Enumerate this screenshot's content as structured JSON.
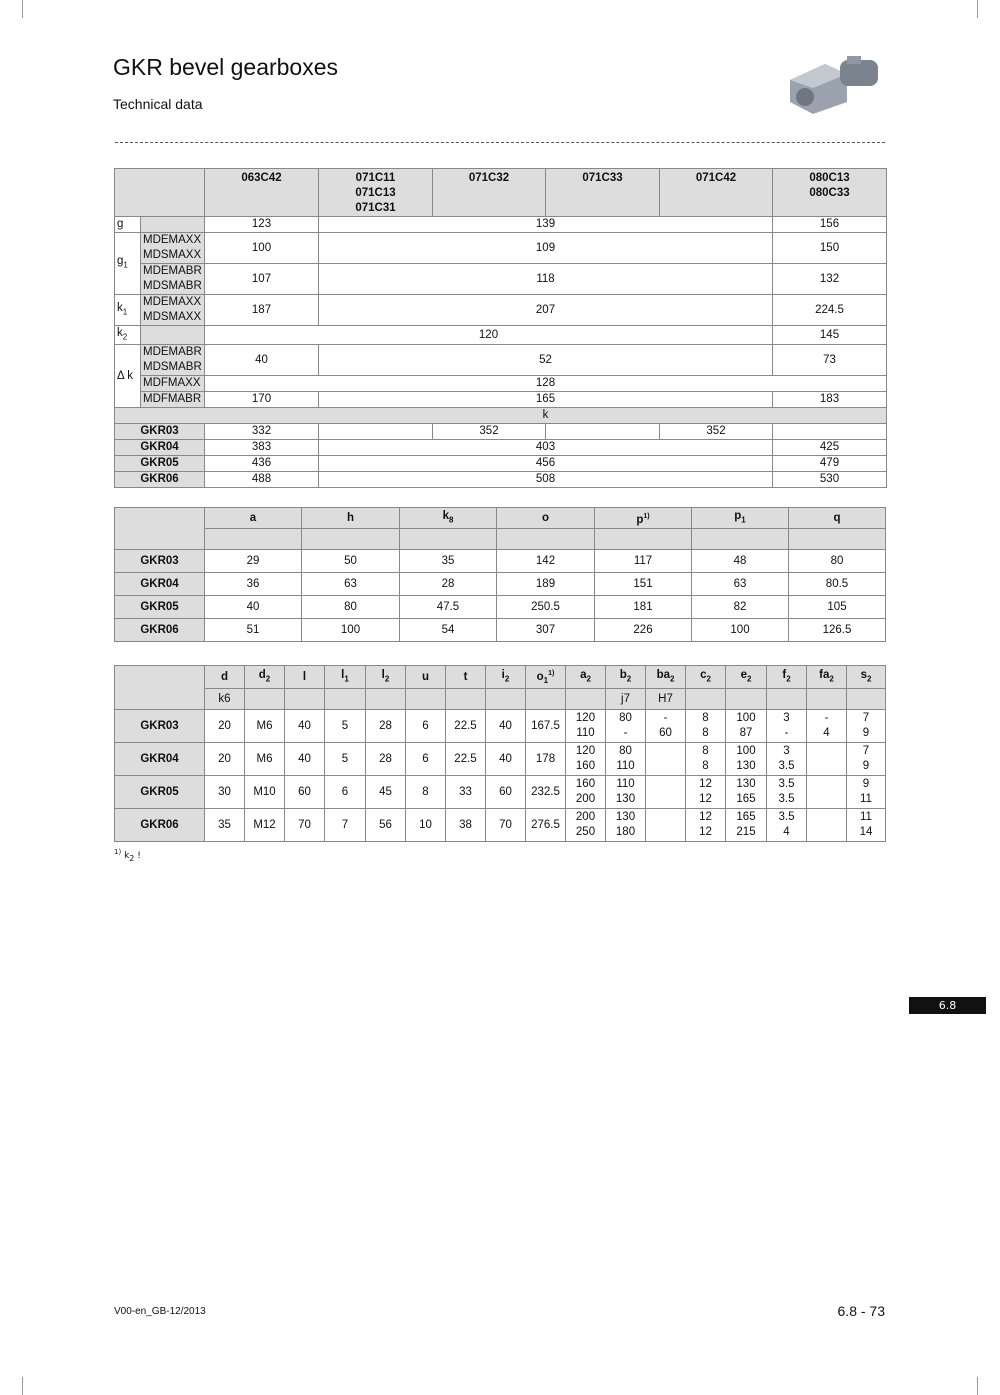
{
  "header": {
    "title": "GKR bevel gearboxes",
    "subtitle": "Technical data"
  },
  "table1": {
    "cols": [
      "063C42",
      "071C11\n071C13\n071C31",
      "071C32",
      "071C33",
      "071C42",
      "080C13\n080C33"
    ],
    "g": {
      "label": "g",
      "v": [
        "123",
        "139",
        "156"
      ]
    },
    "g1": {
      "label": "g",
      "sub": "1",
      "a_models": "MDEMAXX\nMDSMAXX",
      "a": [
        "100",
        "109",
        "150"
      ],
      "b_models": "MDEMABR\nMDSMABR",
      "b": [
        "107",
        "118",
        "132"
      ]
    },
    "k1": {
      "label": "k",
      "sub": "1",
      "models": "MDEMAXX\nMDSMAXX",
      "v": [
        "187",
        "207",
        "224.5"
      ]
    },
    "k2": {
      "label": "k",
      "sub": "2",
      "v": [
        "120",
        "145"
      ]
    },
    "dk": {
      "label": "Δ k",
      "a_models": "MDEMABR\nMDSMABR",
      "a": [
        "40",
        "52",
        "73"
      ],
      "b_models": "MDFMAXX",
      "b": [
        "128"
      ],
      "c_models": "MDFMABR",
      "c": [
        "170",
        "165",
        "183"
      ]
    },
    "k_label": "k",
    "rows": [
      {
        "name": "GKR03",
        "v": [
          "332",
          "352",
          "352"
        ]
      },
      {
        "name": "GKR04",
        "v": [
          "383",
          "403",
          "425"
        ]
      },
      {
        "name": "GKR05",
        "v": [
          "436",
          "456",
          "479"
        ]
      },
      {
        "name": "GKR06",
        "v": [
          "488",
          "508",
          "530"
        ]
      }
    ]
  },
  "table2": {
    "headers": [
      {
        "t": "a"
      },
      {
        "t": "h"
      },
      {
        "t": "k",
        "sub": "8"
      },
      {
        "t": "o"
      },
      {
        "t": "p",
        "sup": "1)"
      },
      {
        "t": "p",
        "sub": "1"
      },
      {
        "t": "q"
      }
    ],
    "rows": [
      {
        "name": "GKR03",
        "v": [
          "29",
          "50",
          "35",
          "142",
          "117",
          "48",
          "80"
        ]
      },
      {
        "name": "GKR04",
        "v": [
          "36",
          "63",
          "28",
          "189",
          "151",
          "63",
          "80.5"
        ]
      },
      {
        "name": "GKR05",
        "v": [
          "40",
          "80",
          "47.5",
          "250.5",
          "181",
          "82",
          "105"
        ]
      },
      {
        "name": "GKR06",
        "v": [
          "51",
          "100",
          "54",
          "307",
          "226",
          "100",
          "126.5"
        ]
      }
    ]
  },
  "table3": {
    "headers": [
      {
        "t": "d",
        "tol": "k6"
      },
      {
        "t": "d",
        "sub": "2"
      },
      {
        "t": "l"
      },
      {
        "t": "l",
        "sub": "1"
      },
      {
        "t": "l",
        "sub": "2"
      },
      {
        "t": "u"
      },
      {
        "t": "t"
      },
      {
        "t": "i",
        "sub": "2"
      },
      {
        "t": "o",
        "sub": "1",
        "sup": "1)"
      },
      {
        "t": "a",
        "sub": "2"
      },
      {
        "t": "b",
        "sub": "2",
        "tol": "j7"
      },
      {
        "t": "ba",
        "sub": "2",
        "tol": "H7"
      },
      {
        "t": "c",
        "sub": "2"
      },
      {
        "t": "e",
        "sub": "2"
      },
      {
        "t": "f",
        "sub": "2"
      },
      {
        "t": "fa",
        "sub": "2"
      },
      {
        "t": "s",
        "sub": "2"
      }
    ],
    "rows": [
      {
        "name": "GKR03",
        "v": [
          "20",
          "M6",
          "40",
          "5",
          "28",
          "6",
          "22.5",
          "40",
          "167.5",
          "120\n110",
          "80\n-",
          "-\n60",
          "8\n8",
          "100\n87",
          "3\n-",
          "-\n4",
          "7\n9"
        ]
      },
      {
        "name": "GKR04",
        "v": [
          "20",
          "M6",
          "40",
          "5",
          "28",
          "6",
          "22.5",
          "40",
          "178",
          "120\n160",
          "80\n110",
          "",
          "8\n8",
          "100\n130",
          "3\n3.5",
          "",
          "7\n9"
        ]
      },
      {
        "name": "GKR05",
        "v": [
          "30",
          "M10",
          "60",
          "6",
          "45",
          "8",
          "33",
          "60",
          "232.5",
          "160\n200",
          "110\n130",
          "",
          "12\n12",
          "130\n165",
          "3.5\n3.5",
          "",
          "9\n11"
        ]
      },
      {
        "name": "GKR06",
        "v": [
          "35",
          "M12",
          "70",
          "7",
          "56",
          "10",
          "38",
          "70",
          "276.5",
          "200\n250",
          "130\n180",
          "",
          "12\n12",
          "165\n215",
          "3.5\n4",
          "",
          "11\n14"
        ]
      }
    ]
  },
  "footnote": {
    "mark": "1)",
    "text": "k",
    "sub": "2",
    "tail": " !"
  },
  "side_tab": "6.8",
  "footer": {
    "version": "V00-en_GB-12/2013",
    "page": "6.8 - 73"
  }
}
